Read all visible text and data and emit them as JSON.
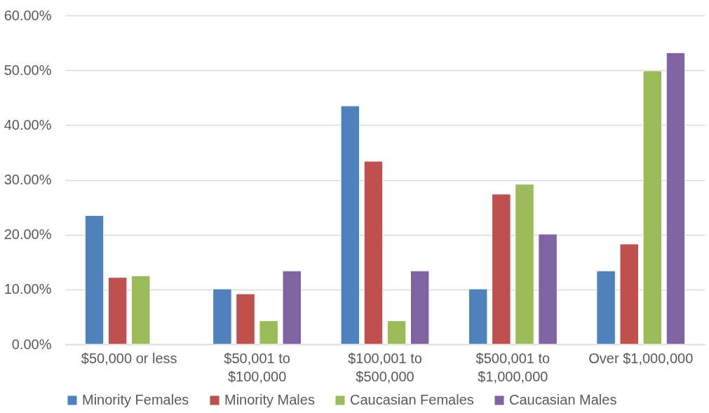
{
  "chart_data": {
    "type": "bar",
    "categories": [
      "$50,000 or less",
      "$50,001 to $100,000",
      "$100,001 to $500,000",
      "$500,001 to $1,000,000",
      "Over $1,000,000"
    ],
    "series": [
      {
        "name": "Minority Females",
        "color": "#4f81bd",
        "values": [
          23.5,
          10.1,
          43.5,
          10.1,
          13.4
        ]
      },
      {
        "name": "Minority Males",
        "color": "#c0504d",
        "values": [
          12.2,
          9.2,
          33.4,
          27.4,
          18.3
        ]
      },
      {
        "name": "Caucasian Females",
        "color": "#9bbb59",
        "values": [
          12.5,
          4.3,
          4.3,
          29.2,
          49.9
        ]
      },
      {
        "name": "Caucasian Males",
        "color": "#8064a2",
        "values": [
          null,
          13.4,
          13.4,
          20.1,
          53.2
        ]
      }
    ],
    "ylim": [
      0,
      60
    ],
    "yticks": [
      {
        "value": 0,
        "label": "0.00%"
      },
      {
        "value": 10,
        "label": "10.00%"
      },
      {
        "value": 20,
        "label": "20.00%"
      },
      {
        "value": 30,
        "label": "30.00%"
      },
      {
        "value": 40,
        "label": "40.00%"
      },
      {
        "value": 50,
        "label": "50.00%"
      },
      {
        "value": 60,
        "label": "60.00%"
      }
    ],
    "grid": "y",
    "legend": "bottom"
  }
}
